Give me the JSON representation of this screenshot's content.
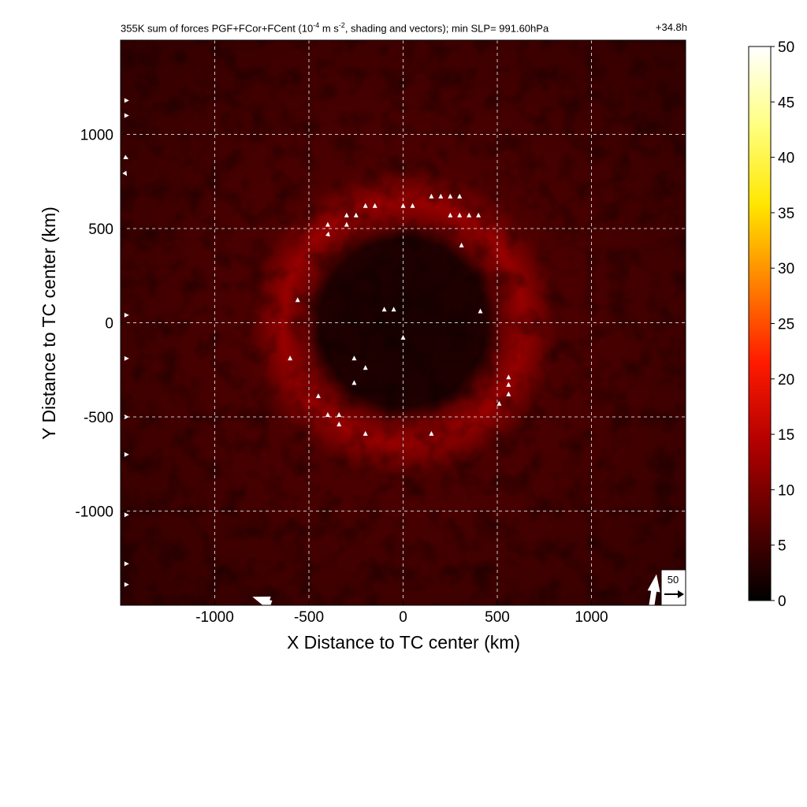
{
  "chart_data": {
    "type": "heatmap",
    "title": {
      "prefix": "355K sum of forces PGF+FCor+FCent (10",
      "exponent1": "-4",
      "middle": " m s",
      "exponent2": "-2",
      "suffix": ", shading and vectors); min SLP= 991.60hPa"
    },
    "lead_time": "+34.8h",
    "xlabel": "X Distance to TC center (km)",
    "ylabel": "Y Distance to TC center (km)",
    "xlim": [
      -1500,
      1500
    ],
    "ylim": [
      -1500,
      1500
    ],
    "x_ticks": [
      -1000,
      -500,
      0,
      500,
      1000
    ],
    "y_ticks": [
      -1000,
      -500,
      0,
      500,
      1000
    ],
    "x_tick_labels": [
      "-1000",
      "-500",
      "0",
      "500",
      "1000"
    ],
    "y_tick_labels": [
      "-1000",
      "-500",
      "0",
      "500",
      "1000"
    ],
    "grid": true,
    "colorbar": {
      "range": [
        0,
        50
      ],
      "ticks": [
        "0",
        "5",
        "10",
        "15",
        "20",
        "25",
        "30",
        "35",
        "40",
        "45",
        "50"
      ],
      "colors": [
        "#000000",
        "#5a0000",
        "#b30000",
        "#ff1a00",
        "#ff8000",
        "#ffe600",
        "#ffff80",
        "#ffffff"
      ]
    },
    "reference_vector": {
      "label": "50",
      "magnitude": 50
    },
    "field_description_values": {
      "core_radius_km": 520,
      "ring_peak_radius_km": 640,
      "ring_peak_value": 12,
      "background_value": 4
    },
    "vectors": [
      {
        "x": -400,
        "y": 510,
        "dx": 0,
        "dy": 10
      },
      {
        "x": -400,
        "y": 460,
        "dx": 2,
        "dy": 10
      },
      {
        "x": -300,
        "y": 560,
        "dx": 0,
        "dy": 10
      },
      {
        "x": -300,
        "y": 510,
        "dx": 0,
        "dy": 10
      },
      {
        "x": -250,
        "y": 560,
        "dx": 0,
        "dy": 10
      },
      {
        "x": -200,
        "y": 610,
        "dx": 0,
        "dy": 10
      },
      {
        "x": -150,
        "y": 610,
        "dx": 0,
        "dy": 10
      },
      {
        "x": 0,
        "y": 610,
        "dx": 0,
        "dy": 10
      },
      {
        "x": 50,
        "y": 610,
        "dx": 0,
        "dy": 10
      },
      {
        "x": 150,
        "y": 660,
        "dx": 0,
        "dy": 10
      },
      {
        "x": 200,
        "y": 660,
        "dx": 0,
        "dy": 10
      },
      {
        "x": 250,
        "y": 660,
        "dx": 0,
        "dy": 10
      },
      {
        "x": 300,
        "y": 660,
        "dx": 0,
        "dy": 10
      },
      {
        "x": 250,
        "y": 560,
        "dx": 0,
        "dy": 10
      },
      {
        "x": 300,
        "y": 560,
        "dx": 0,
        "dy": 10
      },
      {
        "x": 350,
        "y": 560,
        "dx": 0,
        "dy": 10
      },
      {
        "x": 400,
        "y": 560,
        "dx": 0,
        "dy": 10
      },
      {
        "x": 310,
        "y": 400,
        "dx": 0,
        "dy": 10
      },
      {
        "x": -560,
        "y": 110,
        "dx": 0,
        "dy": 10
      },
      {
        "x": -100,
        "y": 60,
        "dx": 0,
        "dy": 10
      },
      {
        "x": -50,
        "y": 60,
        "dx": 0,
        "dy": 10
      },
      {
        "x": 410,
        "y": 50,
        "dx": 0,
        "dy": 10
      },
      {
        "x": 0,
        "y": -90,
        "dx": 0,
        "dy": 10
      },
      {
        "x": -600,
        "y": -200,
        "dx": 0,
        "dy": 10
      },
      {
        "x": -260,
        "y": -200,
        "dx": 0,
        "dy": 10
      },
      {
        "x": -200,
        "y": -250,
        "dx": 0,
        "dy": 10
      },
      {
        "x": -260,
        "y": -330,
        "dx": 0,
        "dy": 10
      },
      {
        "x": -450,
        "y": -400,
        "dx": 0,
        "dy": 10
      },
      {
        "x": -400,
        "y": -500,
        "dx": 0,
        "dy": 10
      },
      {
        "x": -340,
        "y": -500,
        "dx": 0,
        "dy": 10
      },
      {
        "x": -340,
        "y": -550,
        "dx": 0,
        "dy": 10
      },
      {
        "x": -200,
        "y": -600,
        "dx": 0,
        "dy": 10
      },
      {
        "x": 150,
        "y": -600,
        "dx": 0,
        "dy": 10
      },
      {
        "x": 560,
        "y": -300,
        "dx": 0,
        "dy": 10
      },
      {
        "x": 560,
        "y": -340,
        "dx": 0,
        "dy": 10
      },
      {
        "x": 560,
        "y": -390,
        "dx": 0,
        "dy": 10
      },
      {
        "x": 510,
        "y": -440,
        "dx": 0,
        "dy": 10
      },
      {
        "x": -1480,
        "y": 1180,
        "dx": 8,
        "dy": 0
      },
      {
        "x": -1480,
        "y": 1100,
        "dx": 8,
        "dy": 0
      },
      {
        "x": -1480,
        "y": 880,
        "dx": 6,
        "dy": -3
      },
      {
        "x": -1480,
        "y": 800,
        "dx": 4,
        "dy": -6
      },
      {
        "x": -1480,
        "y": 40,
        "dx": 3,
        "dy": 0
      },
      {
        "x": -1480,
        "y": -190,
        "dx": 3,
        "dy": 0
      },
      {
        "x": -1480,
        "y": -500,
        "dx": 5,
        "dy": 0
      },
      {
        "x": -1480,
        "y": -700,
        "dx": 4,
        "dy": 0
      },
      {
        "x": -1480,
        "y": -1020,
        "dx": 3,
        "dy": 0
      },
      {
        "x": -1480,
        "y": -1280,
        "dx": 5,
        "dy": 0
      },
      {
        "x": -1480,
        "y": -1390,
        "dx": 5,
        "dy": 0
      },
      {
        "x": -700,
        "y": -1490,
        "dx": -100,
        "dy": 35
      },
      {
        "x": 1320,
        "y": -1500,
        "dx": 25,
        "dy": 165
      }
    ]
  }
}
